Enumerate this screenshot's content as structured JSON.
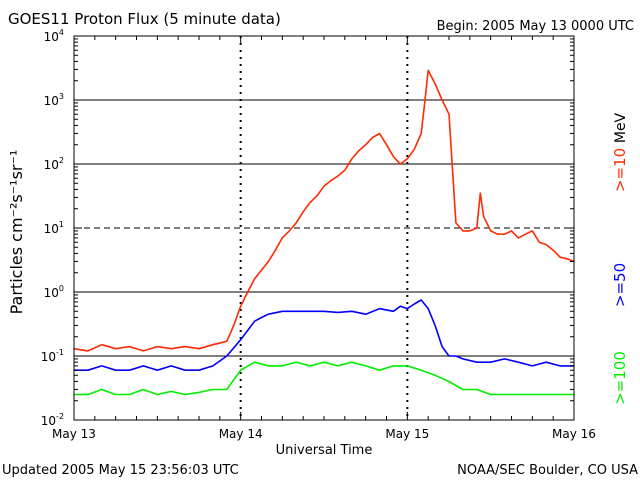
{
  "header": {
    "title": "GOES11 Proton Flux (5 minute data)",
    "begin": "Begin: 2005 May 13 0000 UTC"
  },
  "footer": {
    "updated": "Updated 2005 May 15 23:56:03 UTC",
    "source": "NOAA/SEC Boulder, CO USA"
  },
  "colors": {
    "ge10": "#ff2a00",
    "ge50": "#0000ff",
    "ge100": "#00ee00",
    "frame": "#000000"
  },
  "chart_data": {
    "type": "line",
    "title": "GOES11 Proton Flux (5 minute data)",
    "xlabel": "Universal Time",
    "ylabel": "Particles cm⁻²s⁻¹sr⁻¹",
    "y_scale": "log",
    "ylim": [
      0.01,
      10000
    ],
    "xlim": [
      0,
      72
    ],
    "x_unit_note": "",
    "x_ticks": [
      {
        "x": 0,
        "label": "May 13"
      },
      {
        "x": 24,
        "label": "May 14"
      },
      {
        "x": 48,
        "label": "May 15"
      },
      {
        "x": 72,
        "label": "May 16"
      }
    ],
    "y_ticks": [
      {
        "value": 0.01,
        "base": "10",
        "exp": "-2"
      },
      {
        "value": 0.1,
        "base": "10",
        "exp": "-1"
      },
      {
        "value": 1,
        "base": "10",
        "exp": "0"
      },
      {
        "value": 10,
        "base": "10",
        "exp": "1"
      },
      {
        "value": 100,
        "base": "10",
        "exp": "2"
      },
      {
        "value": 1000,
        "base": "10",
        "exp": "3"
      },
      {
        "value": 10000,
        "base": "10",
        "exp": "4"
      }
    ],
    "threshold_lines": [
      {
        "value": 10,
        "style": "dashed"
      }
    ],
    "unit_label": "MeV",
    "series": [
      {
        "name": ">=10",
        "color": "#ff2a00",
        "x": [
          0,
          2,
          4,
          6,
          8,
          10,
          12,
          14,
          16,
          18,
          20,
          22,
          23,
          24,
          25,
          26,
          27,
          28,
          29,
          30,
          31,
          32,
          33,
          34,
          35,
          36,
          37,
          38,
          39,
          40,
          41,
          42,
          43,
          44,
          45,
          46,
          47,
          48,
          49,
          50,
          50.5,
          51,
          52,
          53,
          54,
          55,
          56,
          57,
          58,
          58.5,
          59,
          60,
          61,
          62,
          63,
          64,
          65,
          66,
          67,
          68,
          69,
          70,
          71,
          72
        ],
        "values": [
          0.13,
          0.12,
          0.15,
          0.13,
          0.14,
          0.12,
          0.14,
          0.13,
          0.14,
          0.13,
          0.15,
          0.17,
          0.3,
          0.6,
          1.0,
          1.6,
          2.2,
          3.0,
          4.5,
          7.0,
          9.0,
          12,
          18,
          25,
          32,
          45,
          55,
          65,
          80,
          120,
          160,
          200,
          260,
          300,
          200,
          130,
          100,
          120,
          170,
          300,
          900,
          2900,
          1800,
          1000,
          600,
          12,
          9,
          9,
          10,
          35,
          15,
          9,
          8,
          8,
          9,
          7,
          8,
          9,
          6,
          5.5,
          4.5,
          3.5,
          3.3,
          3.0
        ]
      },
      {
        "name": ">=50",
        "color": "#0000ff",
        "x": [
          0,
          2,
          4,
          6,
          8,
          10,
          12,
          14,
          16,
          18,
          20,
          22,
          24,
          25,
          26,
          27,
          28,
          30,
          32,
          34,
          36,
          38,
          40,
          42,
          44,
          46,
          47,
          48,
          49,
          50,
          51,
          52,
          53,
          54,
          55,
          56,
          58,
          60,
          62,
          64,
          66,
          68,
          70,
          72
        ],
        "values": [
          0.06,
          0.06,
          0.07,
          0.06,
          0.06,
          0.07,
          0.06,
          0.07,
          0.06,
          0.06,
          0.07,
          0.1,
          0.18,
          0.25,
          0.35,
          0.4,
          0.45,
          0.5,
          0.5,
          0.5,
          0.5,
          0.48,
          0.5,
          0.45,
          0.55,
          0.5,
          0.6,
          0.55,
          0.65,
          0.75,
          0.55,
          0.3,
          0.14,
          0.1,
          0.1,
          0.09,
          0.08,
          0.08,
          0.09,
          0.08,
          0.07,
          0.08,
          0.07,
          0.07
        ]
      },
      {
        "name": ">=100",
        "color": "#00ee00",
        "x": [
          0,
          2,
          4,
          6,
          8,
          10,
          12,
          14,
          16,
          18,
          20,
          22,
          24,
          26,
          28,
          30,
          32,
          34,
          36,
          38,
          40,
          42,
          44,
          46,
          48,
          50,
          52,
          54,
          56,
          58,
          60,
          62,
          64,
          66,
          68,
          70,
          72
        ],
        "values": [
          0.025,
          0.025,
          0.03,
          0.025,
          0.025,
          0.03,
          0.025,
          0.028,
          0.025,
          0.027,
          0.03,
          0.03,
          0.06,
          0.08,
          0.07,
          0.07,
          0.08,
          0.07,
          0.08,
          0.07,
          0.08,
          0.07,
          0.06,
          0.07,
          0.07,
          0.06,
          0.05,
          0.04,
          0.03,
          0.03,
          0.025,
          0.025,
          0.025,
          0.025,
          0.025,
          0.025,
          0.025
        ]
      }
    ]
  }
}
